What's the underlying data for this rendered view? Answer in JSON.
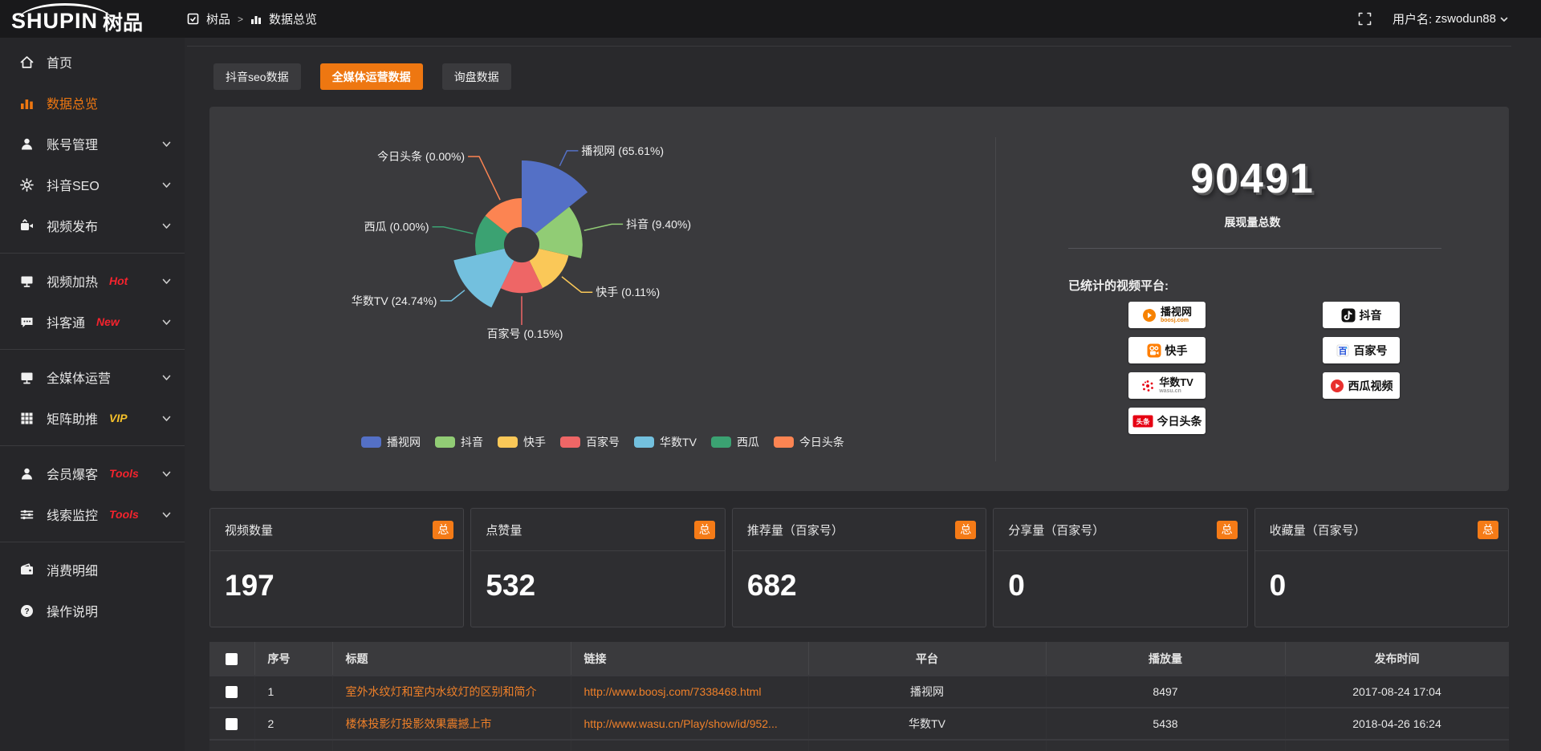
{
  "topbar": {
    "logo": "SHUPIN",
    "logo_cn": "树品",
    "breadcrumb_root": "树品",
    "breadcrumb_sep": ">",
    "breadcrumb_current": "数据总览",
    "username_label": "用户名:",
    "username": "zswodun88"
  },
  "tabs": [
    {
      "label": "抖音seo数据",
      "active": false
    },
    {
      "label": "全媒体运营数据",
      "active": true
    },
    {
      "label": "询盘数据",
      "active": false
    }
  ],
  "sidebar": {
    "items": [
      {
        "label": "首页",
        "icon": "home-icon",
        "active": false,
        "chevron": false,
        "badge": "",
        "divider_after": false
      },
      {
        "label": "数据总览",
        "icon": "bar-chart-icon",
        "active": true,
        "chevron": false,
        "badge": "",
        "divider_after": false
      },
      {
        "label": "账号管理",
        "icon": "user-icon",
        "active": false,
        "chevron": true,
        "badge": "",
        "divider_after": false
      },
      {
        "label": "抖音SEO",
        "icon": "gear-icon",
        "active": false,
        "chevron": true,
        "badge": "",
        "divider_after": false
      },
      {
        "label": "视频发布",
        "icon": "video-publish-icon",
        "active": false,
        "chevron": true,
        "badge": "",
        "divider_after": true
      },
      {
        "label": "视频加热",
        "icon": "screen-icon",
        "active": false,
        "chevron": true,
        "badge": "Hot",
        "badge_color": "#f5232d",
        "divider_after": false
      },
      {
        "label": "抖客通",
        "icon": "chat-icon",
        "active": false,
        "chevron": true,
        "badge": "New",
        "badge_color": "#f5232d",
        "divider_after": true
      },
      {
        "label": "全媒体运营",
        "icon": "monitor-icon",
        "active": false,
        "chevron": true,
        "badge": "",
        "divider_after": false
      },
      {
        "label": "矩阵助推",
        "icon": "grid-icon",
        "active": false,
        "chevron": true,
        "badge": "VIP",
        "badge_color": "#f6c12a",
        "divider_after": true
      },
      {
        "label": "会员爆客",
        "icon": "user-icon",
        "active": false,
        "chevron": true,
        "badge": "Tools",
        "badge_color": "#f5232d",
        "divider_after": false
      },
      {
        "label": "线索监控",
        "icon": "sliders-icon",
        "active": false,
        "chevron": true,
        "badge": "Tools",
        "badge_color": "#f5232d",
        "divider_after": true
      },
      {
        "label": "消费明细",
        "icon": "wallet-icon",
        "active": false,
        "chevron": false,
        "badge": "",
        "divider_after": false
      },
      {
        "label": "操作说明",
        "icon": "help-circle-icon",
        "active": false,
        "chevron": false,
        "badge": "",
        "divider_after": false
      }
    ]
  },
  "chart_data": {
    "type": "pie",
    "subtype": "nightingale-rose",
    "data": [
      {
        "name": "播视网",
        "value": 65.61
      },
      {
        "name": "抖音",
        "value": 9.4
      },
      {
        "name": "快手",
        "value": 0.11
      },
      {
        "name": "百家号",
        "value": 0.15
      },
      {
        "name": "华数TV",
        "value": 24.74
      },
      {
        "name": "西瓜",
        "value": 0.0
      },
      {
        "name": "今日头条",
        "value": 0.0
      }
    ],
    "colors": [
      "#5470c6",
      "#91cc75",
      "#fac858",
      "#ee6666",
      "#73c0de",
      "#3ba272",
      "#fc8452"
    ],
    "label_format": "name (value%)",
    "legend": [
      "播视网",
      "抖音",
      "快手",
      "百家号",
      "华数TV",
      "西瓜",
      "今日头条"
    ],
    "legend_position": "bottom"
  },
  "summary": {
    "total": "90491",
    "total_label": "展现量总数",
    "platforms_label": "已统计的视频平台:",
    "platform_groups": [
      [
        {
          "name": "播视网",
          "sub": "boosj.com",
          "icon": "boosj-icon"
        },
        {
          "name": "快手",
          "sub": "",
          "icon": "kuaishou-icon"
        },
        {
          "name": "华数TV",
          "sub": "wasu.cn",
          "icon": "wasu-icon"
        },
        {
          "name": "今日头条",
          "sub": "",
          "icon": "toutiao-icon"
        }
      ],
      [
        {
          "name": "抖音",
          "sub": "",
          "icon": "douyin-icon"
        },
        {
          "name": "百家号",
          "sub": "",
          "icon": "baijiahao-icon"
        },
        {
          "name": "西瓜视频",
          "sub": "",
          "icon": "xigua-icon"
        }
      ]
    ]
  },
  "stat_cards": [
    {
      "title": "视频数量",
      "badge": "总",
      "value": "197"
    },
    {
      "title": "点赞量",
      "badge": "总",
      "value": "532"
    },
    {
      "title": "推荐量（百家号）",
      "badge": "总",
      "value": "682"
    },
    {
      "title": "分享量（百家号）",
      "badge": "总",
      "value": "0"
    },
    {
      "title": "收藏量（百家号）",
      "badge": "总",
      "value": "0"
    }
  ],
  "table": {
    "headers": [
      "序号",
      "标题",
      "链接",
      "平台",
      "播放量",
      "发布时间"
    ],
    "rows": [
      {
        "checked": false,
        "no": "1",
        "title": "室外水纹灯和室内水纹灯的区别和简介",
        "link": "http://www.boosj.com/7338468.html",
        "platform": "播视网",
        "plays": "8497",
        "time": "2017-08-24 17:04"
      },
      {
        "checked": false,
        "no": "2",
        "title": "楼体投影灯投影效果震撼上市",
        "link": "http://www.wasu.cn/Play/show/id/952...",
        "platform": "华数TV",
        "plays": "5438",
        "time": "2018-04-26 16:24"
      },
      {
        "checked": false,
        "no": "",
        "title": "",
        "link": "",
        "platform": "",
        "plays": "",
        "time": ""
      }
    ]
  },
  "colors": {
    "accent_orange": "#ee7711",
    "badge_orange": "#f57b17",
    "link_orange": "#ef8029",
    "hot_red": "#f5232d",
    "vip_yellow": "#f6c12a"
  }
}
